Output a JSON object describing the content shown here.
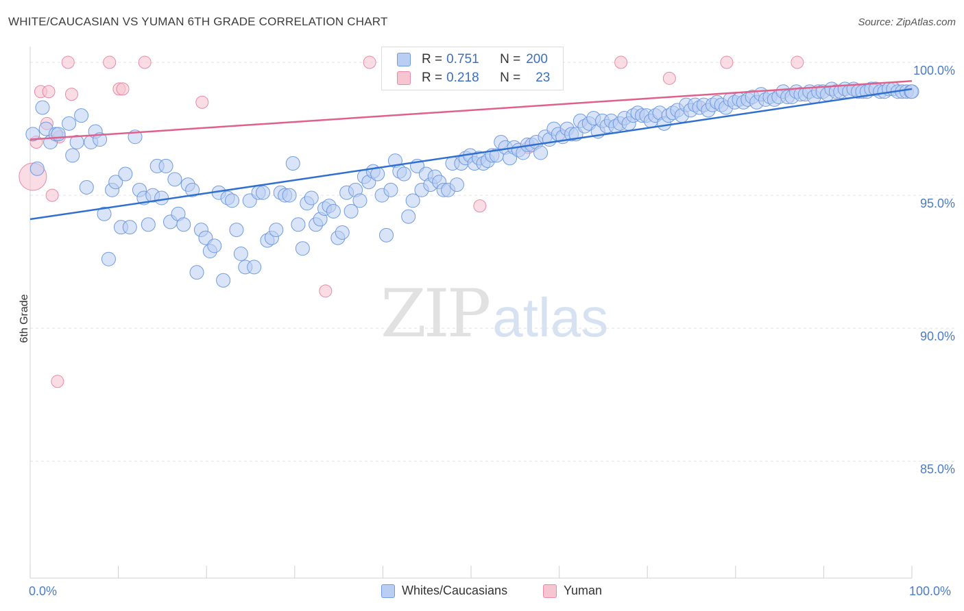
{
  "title": "WHITE/CAUCASIAN VS YUMAN 6TH GRADE CORRELATION CHART",
  "source": "Source: ZipAtlas.com",
  "watermark": {
    "zip": "ZIP",
    "atlas": "atlas"
  },
  "colors": {
    "blue_fill": "#b9cef2",
    "blue_stroke": "#6f9be0",
    "blue_line": "#2f6fd0",
    "pink_fill": "#f7c4d2",
    "pink_stroke": "#e889a5",
    "pink_line": "#e0608a",
    "tick_label": "#4a7cc7",
    "grid": "#e2e2e2"
  },
  "stats": {
    "row1": {
      "r_label": "R = ",
      "r_value": "0.751",
      "n_label": "N = ",
      "n_value": "200"
    },
    "row2": {
      "r_label": "R = ",
      "r_value": "0.218",
      "n_label": "N = ",
      "n_value": "23"
    }
  },
  "legend": {
    "series1": "Whites/Caucasians",
    "series2": "Yuman"
  },
  "chart_data": {
    "type": "scatter",
    "title": "WHITE/CAUCASIAN VS YUMAN 6TH GRADE CORRELATION CHART",
    "xlabel": "",
    "ylabel": "6th Grade",
    "xlim": [
      0,
      100
    ],
    "ylim": [
      80.6,
      100.8
    ],
    "x_tick_labels": [
      "0.0%",
      "100.0%"
    ],
    "y_ticks": [
      85,
      90,
      95,
      100
    ],
    "y_tick_labels": [
      "85.0%",
      "90.0%",
      "95.0%",
      "100.0%"
    ],
    "grid": "horizontal dashed",
    "legend_position": "bottom",
    "series": [
      {
        "name": "Whites/Caucasians",
        "color": "#6f9be0",
        "trendline": {
          "x": [
            0,
            100
          ],
          "y": [
            94.1,
            99.0
          ]
        },
        "points": [
          [
            0.3,
            97.3
          ],
          [
            0.8,
            96.0
          ],
          [
            1.4,
            98.3
          ],
          [
            1.8,
            97.5
          ],
          [
            2.3,
            97.0
          ],
          [
            2.9,
            97.3
          ],
          [
            3.2,
            97.3
          ],
          [
            4.4,
            97.7
          ],
          [
            4.8,
            96.5
          ],
          [
            5.3,
            97.0
          ],
          [
            5.8,
            98.0
          ],
          [
            6.4,
            95.3
          ],
          [
            6.9,
            97.0
          ],
          [
            7.4,
            97.4
          ],
          [
            7.9,
            97.1
          ],
          [
            8.4,
            94.3
          ],
          [
            8.9,
            92.6
          ],
          [
            9.3,
            95.2
          ],
          [
            9.7,
            95.5
          ],
          [
            10.3,
            93.8
          ],
          [
            10.8,
            95.8
          ],
          [
            11.3,
            93.8
          ],
          [
            11.9,
            97.2
          ],
          [
            12.4,
            95.2
          ],
          [
            12.9,
            94.9
          ],
          [
            13.4,
            93.9
          ],
          [
            13.9,
            95.0
          ],
          [
            14.4,
            96.1
          ],
          [
            14.9,
            94.9
          ],
          [
            15.4,
            96.1
          ],
          [
            15.9,
            94.0
          ],
          [
            16.4,
            95.6
          ],
          [
            16.8,
            94.3
          ],
          [
            17.4,
            93.9
          ],
          [
            17.9,
            95.4
          ],
          [
            18.4,
            95.2
          ],
          [
            18.9,
            92.1
          ],
          [
            19.4,
            93.7
          ],
          [
            19.9,
            93.4
          ],
          [
            20.4,
            92.9
          ],
          [
            20.9,
            93.1
          ],
          [
            21.4,
            95.1
          ],
          [
            21.9,
            91.8
          ],
          [
            22.4,
            94.9
          ],
          [
            22.9,
            94.8
          ],
          [
            23.4,
            93.7
          ],
          [
            23.9,
            92.8
          ],
          [
            24.4,
            92.3
          ],
          [
            24.9,
            94.8
          ],
          [
            25.4,
            92.3
          ],
          [
            25.9,
            95.1
          ],
          [
            26.4,
            95.1
          ],
          [
            26.9,
            93.3
          ],
          [
            27.4,
            93.4
          ],
          [
            27.9,
            93.7
          ],
          [
            28.4,
            95.1
          ],
          [
            28.9,
            95.0
          ],
          [
            29.4,
            95.0
          ],
          [
            29.8,
            96.2
          ],
          [
            30.4,
            93.9
          ],
          [
            30.9,
            93.0
          ],
          [
            31.4,
            94.7
          ],
          [
            31.9,
            94.9
          ],
          [
            32.4,
            93.9
          ],
          [
            32.9,
            94.1
          ],
          [
            33.4,
            94.5
          ],
          [
            33.9,
            94.6
          ],
          [
            34.4,
            94.4
          ],
          [
            34.9,
            93.4
          ],
          [
            35.4,
            93.6
          ],
          [
            35.9,
            95.1
          ],
          [
            36.4,
            94.4
          ],
          [
            36.9,
            95.2
          ],
          [
            37.4,
            94.8
          ],
          [
            37.9,
            95.7
          ],
          [
            38.4,
            95.5
          ],
          [
            38.9,
            95.9
          ],
          [
            39.4,
            95.8
          ],
          [
            39.9,
            95.0
          ],
          [
            40.4,
            93.5
          ],
          [
            40.9,
            95.2
          ],
          [
            41.4,
            96.3
          ],
          [
            41.9,
            95.9
          ],
          [
            42.4,
            95.8
          ],
          [
            42.9,
            94.2
          ],
          [
            43.4,
            94.8
          ],
          [
            43.9,
            96.1
          ],
          [
            44.4,
            95.2
          ],
          [
            44.9,
            95.8
          ],
          [
            45.4,
            95.4
          ],
          [
            45.9,
            95.7
          ],
          [
            46.4,
            95.5
          ],
          [
            46.9,
            95.2
          ],
          [
            47.4,
            95.2
          ],
          [
            47.9,
            96.2
          ],
          [
            48.4,
            95.4
          ],
          [
            48.9,
            96.2
          ],
          [
            49.4,
            96.4
          ],
          [
            49.9,
            96.5
          ],
          [
            50.4,
            96.2
          ],
          [
            50.9,
            96.4
          ],
          [
            51.4,
            96.2
          ],
          [
            51.9,
            96.3
          ],
          [
            52.4,
            96.5
          ],
          [
            52.9,
            96.5
          ],
          [
            53.4,
            97.0
          ],
          [
            53.9,
            96.8
          ],
          [
            54.4,
            96.4
          ],
          [
            54.9,
            96.8
          ],
          [
            55.4,
            96.7
          ],
          [
            55.9,
            96.6
          ],
          [
            56.4,
            96.9
          ],
          [
            56.9,
            96.9
          ],
          [
            57.4,
            97.0
          ],
          [
            57.9,
            96.6
          ],
          [
            58.4,
            97.2
          ],
          [
            58.9,
            97.1
          ],
          [
            59.4,
            97.5
          ],
          [
            59.9,
            97.3
          ],
          [
            60.4,
            97.2
          ],
          [
            60.9,
            97.5
          ],
          [
            61.4,
            97.3
          ],
          [
            61.9,
            97.3
          ],
          [
            62.4,
            97.8
          ],
          [
            62.9,
            97.6
          ],
          [
            63.4,
            97.7
          ],
          [
            63.9,
            97.9
          ],
          [
            64.4,
            97.4
          ],
          [
            64.9,
            97.8
          ],
          [
            65.4,
            97.6
          ],
          [
            65.9,
            97.8
          ],
          [
            66.4,
            97.6
          ],
          [
            66.9,
            97.7
          ],
          [
            67.4,
            97.9
          ],
          [
            67.9,
            97.7
          ],
          [
            68.4,
            98.0
          ],
          [
            68.9,
            98.1
          ],
          [
            69.4,
            98.0
          ],
          [
            69.9,
            98.0
          ],
          [
            70.4,
            97.8
          ],
          [
            70.9,
            98.0
          ],
          [
            71.4,
            98.1
          ],
          [
            71.9,
            97.7
          ],
          [
            72.4,
            98.0
          ],
          [
            72.9,
            98.1
          ],
          [
            73.4,
            98.2
          ],
          [
            73.9,
            98.0
          ],
          [
            74.4,
            98.4
          ],
          [
            74.9,
            98.2
          ],
          [
            75.4,
            98.4
          ],
          [
            75.9,
            98.3
          ],
          [
            76.4,
            98.4
          ],
          [
            76.9,
            98.2
          ],
          [
            77.4,
            98.4
          ],
          [
            77.9,
            98.5
          ],
          [
            78.4,
            98.4
          ],
          [
            78.9,
            98.3
          ],
          [
            79.4,
            98.6
          ],
          [
            79.9,
            98.5
          ],
          [
            80.4,
            98.6
          ],
          [
            80.9,
            98.5
          ],
          [
            81.4,
            98.6
          ],
          [
            81.9,
            98.7
          ],
          [
            82.4,
            98.5
          ],
          [
            82.9,
            98.8
          ],
          [
            83.4,
            98.6
          ],
          [
            83.9,
            98.7
          ],
          [
            84.4,
            98.6
          ],
          [
            84.9,
            98.7
          ],
          [
            85.4,
            98.9
          ],
          [
            85.9,
            98.7
          ],
          [
            86.4,
            98.7
          ],
          [
            86.9,
            98.9
          ],
          [
            87.4,
            98.8
          ],
          [
            87.9,
            98.8
          ],
          [
            88.4,
            98.9
          ],
          [
            88.9,
            98.7
          ],
          [
            89.4,
            98.9
          ],
          [
            89.9,
            98.9
          ],
          [
            90.4,
            98.8
          ],
          [
            90.9,
            99.0
          ],
          [
            91.4,
            98.9
          ],
          [
            91.9,
            98.9
          ],
          [
            92.4,
            99.0
          ],
          [
            92.9,
            98.9
          ],
          [
            93.4,
            99.0
          ],
          [
            93.9,
            98.9
          ],
          [
            94.4,
            98.9
          ],
          [
            94.9,
            98.9
          ],
          [
            95.4,
            99.0
          ],
          [
            95.9,
            99.0
          ],
          [
            96.4,
            98.9
          ],
          [
            96.9,
            98.9
          ],
          [
            97.4,
            99.0
          ],
          [
            97.9,
            99.0
          ],
          [
            98.4,
            98.9
          ],
          [
            98.9,
            98.9
          ],
          [
            99.4,
            98.9
          ],
          [
            99.9,
            98.9
          ],
          [
            100.0,
            98.9
          ]
        ]
      },
      {
        "name": "Yuman",
        "color": "#e889a5",
        "trendline": {
          "x": [
            0,
            100
          ],
          "y": [
            97.1,
            99.3
          ]
        },
        "points": [
          [
            0.3,
            95.7
          ],
          [
            0.7,
            97.0
          ],
          [
            1.2,
            98.9
          ],
          [
            1.9,
            97.7
          ],
          [
            2.1,
            98.9
          ],
          [
            2.5,
            95.0
          ],
          [
            3.1,
            88.0
          ],
          [
            3.3,
            97.2
          ],
          [
            4.3,
            100.0
          ],
          [
            4.7,
            98.8
          ],
          [
            9.0,
            100.0
          ],
          [
            10.1,
            99.0
          ],
          [
            10.5,
            99.0
          ],
          [
            13.0,
            100.0
          ],
          [
            19.5,
            98.5
          ],
          [
            33.5,
            91.4
          ],
          [
            38.5,
            100.0
          ],
          [
            51.0,
            94.6
          ],
          [
            56.5,
            96.8
          ],
          [
            67.0,
            100.0
          ],
          [
            72.5,
            99.4
          ],
          [
            79.0,
            100.0
          ],
          [
            87.0,
            100.0
          ]
        ]
      }
    ]
  }
}
